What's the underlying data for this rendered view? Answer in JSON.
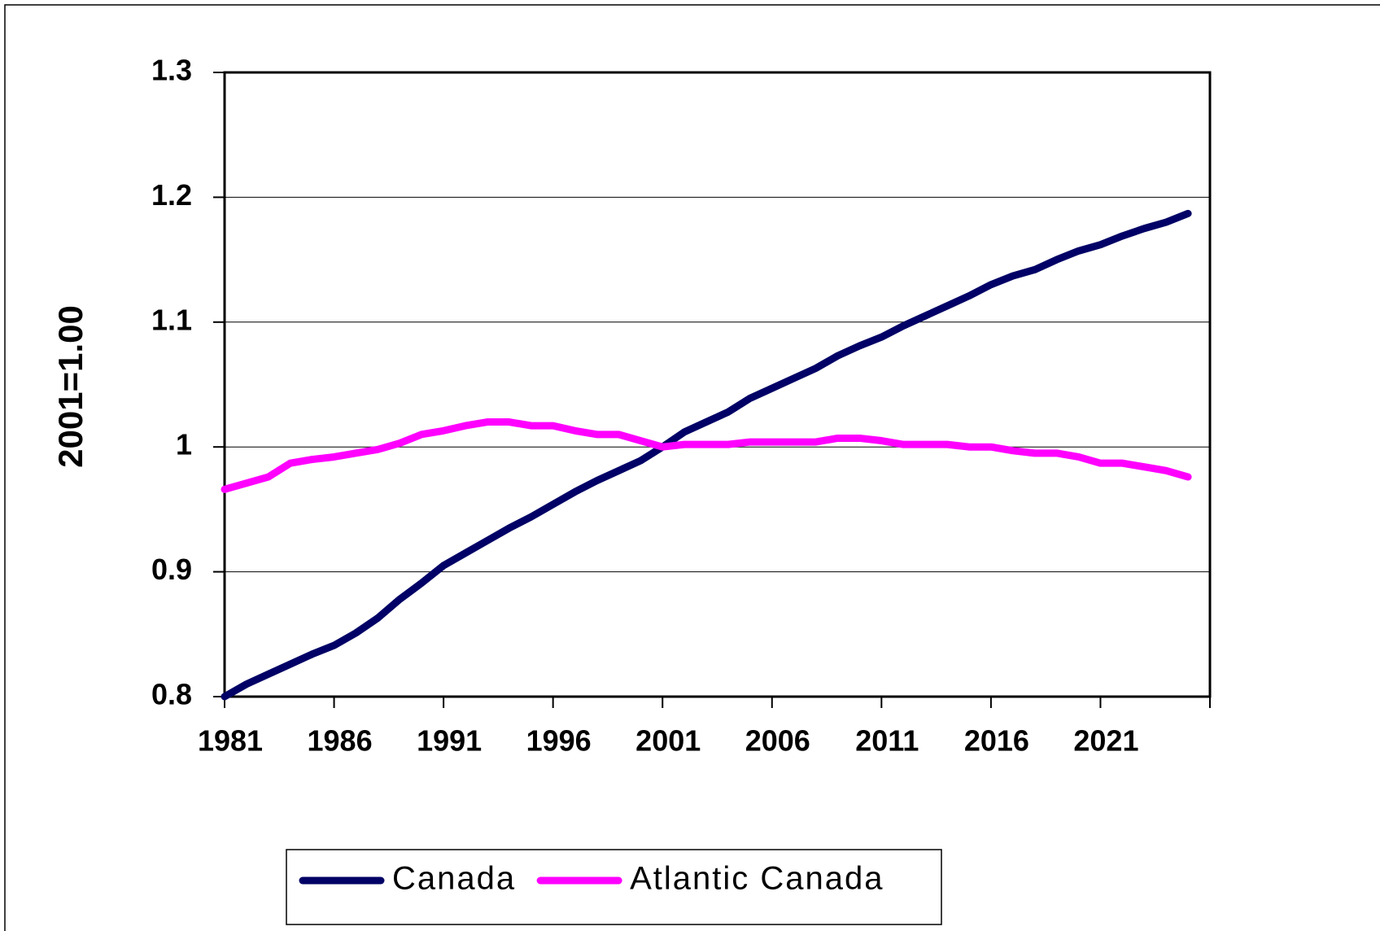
{
  "chart_data": {
    "type": "line",
    "ylabel": "2001=1.00",
    "x": [
      1981,
      1982,
      1983,
      1984,
      1985,
      1986,
      1987,
      1988,
      1989,
      1990,
      1991,
      1992,
      1993,
      1994,
      1995,
      1996,
      1997,
      1998,
      1999,
      2000,
      2001,
      2002,
      2003,
      2004,
      2005,
      2006,
      2007,
      2008,
      2009,
      2010,
      2011,
      2012,
      2013,
      2014,
      2015,
      2016,
      2017,
      2018,
      2019,
      2020,
      2021,
      2022,
      2023,
      2024,
      2025
    ],
    "series": [
      {
        "name": "Canada",
        "color": "#000066",
        "values": [
          0.8,
          0.81,
          0.818,
          0.826,
          0.834,
          0.841,
          0.851,
          0.863,
          0.878,
          0.891,
          0.905,
          0.915,
          0.925,
          0.935,
          0.944,
          0.954,
          0.964,
          0.973,
          0.981,
          0.989,
          1.0,
          1.012,
          1.02,
          1.028,
          1.039,
          1.047,
          1.055,
          1.063,
          1.073,
          1.081,
          1.088,
          1.097,
          1.105,
          1.113,
          1.121,
          1.13,
          1.137,
          1.142,
          1.15,
          1.157,
          1.162,
          1.169,
          1.175,
          1.18,
          1.187
        ]
      },
      {
        "name": "Atlantic Canada",
        "color": "#ff00ff",
        "values": [
          0.966,
          0.971,
          0.976,
          0.987,
          0.99,
          0.992,
          0.995,
          0.998,
          1.003,
          1.01,
          1.013,
          1.017,
          1.02,
          1.02,
          1.017,
          1.017,
          1.013,
          1.01,
          1.01,
          1.005,
          1.0,
          1.002,
          1.002,
          1.002,
          1.004,
          1.004,
          1.004,
          1.004,
          1.007,
          1.007,
          1.005,
          1.002,
          1.002,
          1.002,
          1.0,
          1.0,
          0.997,
          0.995,
          0.995,
          0.992,
          0.987,
          0.987,
          0.984,
          0.981,
          0.976
        ]
      }
    ],
    "xlim": [
      1981,
      2026
    ],
    "xticks": [
      1981,
      1986,
      1991,
      1996,
      2001,
      2006,
      2011,
      2016,
      2021
    ],
    "ylim": [
      0.8,
      1.3
    ],
    "yticks": [
      0.8,
      0.9,
      1,
      1.1,
      1.2,
      1.3
    ],
    "grid": true,
    "legend": "bottom"
  }
}
